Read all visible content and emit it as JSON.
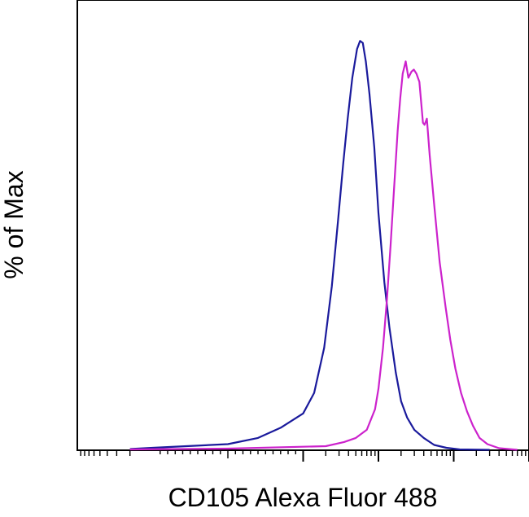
{
  "chart_data": {
    "type": "line",
    "title": "",
    "xlabel": "CD105 Alexa Fluor 488",
    "ylabel": "% of Max",
    "x_scale": "log",
    "xlim": [
      -1000,
      100000
    ],
    "ylim": [
      0,
      110
    ],
    "grid": false,
    "legend": "none",
    "series": [
      {
        "color": "#1a1a9c",
        "points": [
          [
            -200,
            0.3
          ],
          [
            -100,
            0.6
          ],
          [
            0,
            1.5
          ],
          [
            40,
            3.0
          ],
          [
            70,
            5.5
          ],
          [
            100,
            9.0
          ],
          [
            140,
            14.0
          ],
          [
            190,
            25.0
          ],
          [
            240,
            40.0
          ],
          [
            290,
            56.0
          ],
          [
            340,
            70.0
          ],
          [
            390,
            81.0
          ],
          [
            450,
            91.0
          ],
          [
            520,
            98.0
          ],
          [
            570,
            100.0
          ],
          [
            620,
            99.5
          ],
          [
            680,
            95.0
          ],
          [
            760,
            87.0
          ],
          [
            880,
            74.0
          ],
          [
            1000,
            58.0
          ],
          [
            1200,
            41.0
          ],
          [
            1400,
            30.0
          ],
          [
            1700,
            19.0
          ],
          [
            2000,
            12.0
          ],
          [
            2400,
            8.0
          ],
          [
            3000,
            5.0
          ],
          [
            4000,
            3.0
          ],
          [
            5500,
            1.3
          ],
          [
            8000,
            0.6
          ],
          [
            12000,
            0.2
          ],
          [
            30000,
            0.1
          ]
        ]
      },
      {
        "color": "#cc22cc",
        "points": [
          [
            -200,
            0.2
          ],
          [
            0,
            0.4
          ],
          [
            200,
            1.0
          ],
          [
            350,
            2.0
          ],
          [
            500,
            3.0
          ],
          [
            700,
            5.0
          ],
          [
            900,
            10.0
          ],
          [
            1000,
            15.0
          ],
          [
            1150,
            25.0
          ],
          [
            1300,
            37.0
          ],
          [
            1450,
            50.0
          ],
          [
            1600,
            63.0
          ],
          [
            1800,
            78.0
          ],
          [
            1950,
            86.0
          ],
          [
            2100,
            92.0
          ],
          [
            2300,
            95.0
          ],
          [
            2500,
            91.0
          ],
          [
            2750,
            92.5
          ],
          [
            2950,
            93.0
          ],
          [
            3200,
            92.0
          ],
          [
            3500,
            90.0
          ],
          [
            3900,
            80.0
          ],
          [
            4100,
            79.5
          ],
          [
            4400,
            81.0
          ],
          [
            4800,
            72.0
          ],
          [
            5500,
            60.0
          ],
          [
            6500,
            46.0
          ],
          [
            7800,
            35.0
          ],
          [
            9000,
            27.0
          ],
          [
            10500,
            20.0
          ],
          [
            12500,
            14.0
          ],
          [
            15000,
            9.5
          ],
          [
            18000,
            6.0
          ],
          [
            22000,
            3.0
          ],
          [
            28000,
            1.5
          ],
          [
            40000,
            0.5
          ],
          [
            70000,
            0.1
          ]
        ]
      }
    ]
  }
}
